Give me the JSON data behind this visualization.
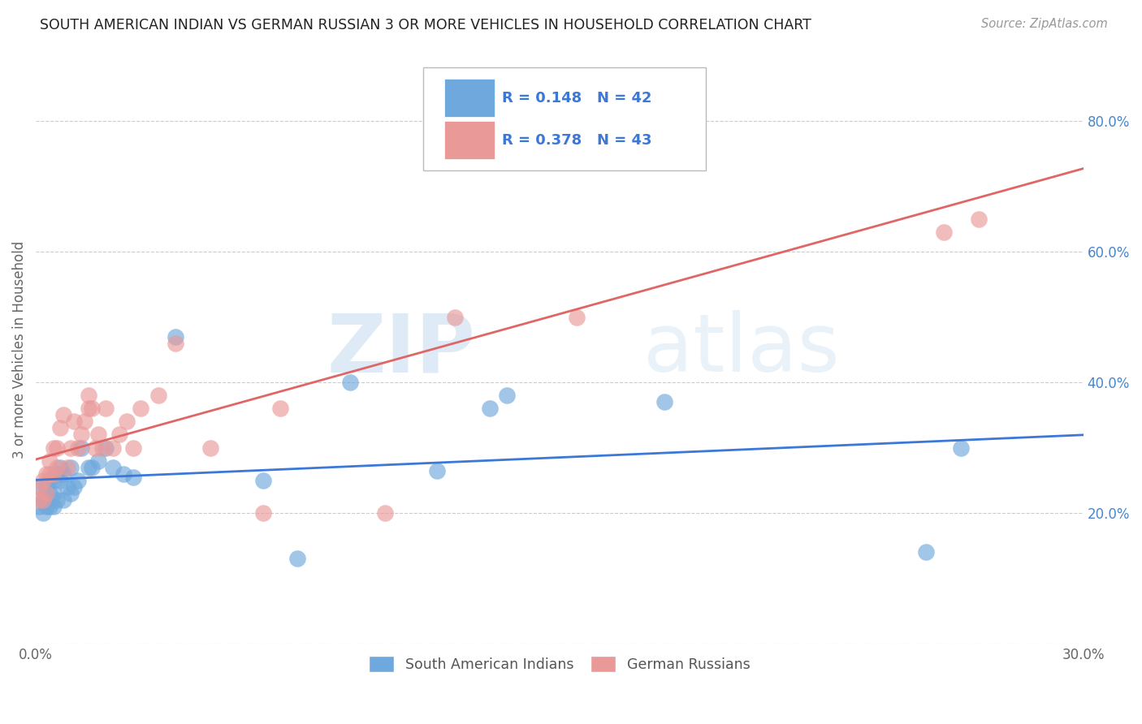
{
  "title": "SOUTH AMERICAN INDIAN VS GERMAN RUSSIAN 3 OR MORE VEHICLES IN HOUSEHOLD CORRELATION CHART",
  "source": "Source: ZipAtlas.com",
  "ylabel": "3 or more Vehicles in Household",
  "xlim": [
    0.0,
    0.3
  ],
  "ylim": [
    0.0,
    0.9
  ],
  "xticks": [
    0.0,
    0.05,
    0.1,
    0.15,
    0.2,
    0.25,
    0.3
  ],
  "xticklabels": [
    "0.0%",
    "",
    "",
    "",
    "",
    "",
    "30.0%"
  ],
  "yticks_right": [
    0.0,
    0.2,
    0.4,
    0.6,
    0.8
  ],
  "ytick_right_labels": [
    "",
    "20.0%",
    "40.0%",
    "60.0%",
    "80.0%"
  ],
  "blue_color": "#6fa8dc",
  "pink_color": "#ea9999",
  "blue_line_color": "#3c78d8",
  "pink_line_color": "#e06666",
  "legend_text_color": "#3c78d8",
  "r_blue": 0.148,
  "n_blue": 42,
  "r_pink": 0.378,
  "n_pink": 43,
  "watermark_zip": "ZIP",
  "watermark_atlas": "atlas",
  "blue_scatter_x": [
    0.001,
    0.001,
    0.002,
    0.002,
    0.003,
    0.003,
    0.003,
    0.004,
    0.004,
    0.004,
    0.005,
    0.005,
    0.005,
    0.006,
    0.006,
    0.007,
    0.007,
    0.008,
    0.008,
    0.009,
    0.01,
    0.01,
    0.011,
    0.012,
    0.013,
    0.015,
    0.016,
    0.018,
    0.02,
    0.022,
    0.025,
    0.028,
    0.04,
    0.09,
    0.115,
    0.13,
    0.135,
    0.18,
    0.065,
    0.075,
    0.255,
    0.265
  ],
  "blue_scatter_y": [
    0.24,
    0.21,
    0.22,
    0.2,
    0.24,
    0.22,
    0.21,
    0.25,
    0.23,
    0.21,
    0.23,
    0.25,
    0.21,
    0.22,
    0.26,
    0.27,
    0.25,
    0.26,
    0.22,
    0.24,
    0.27,
    0.23,
    0.24,
    0.25,
    0.3,
    0.27,
    0.27,
    0.28,
    0.3,
    0.27,
    0.26,
    0.255,
    0.47,
    0.4,
    0.265,
    0.36,
    0.38,
    0.37,
    0.25,
    0.13,
    0.14,
    0.3
  ],
  "pink_scatter_x": [
    0.001,
    0.001,
    0.002,
    0.002,
    0.003,
    0.003,
    0.004,
    0.004,
    0.005,
    0.005,
    0.006,
    0.006,
    0.007,
    0.008,
    0.009,
    0.01,
    0.011,
    0.012,
    0.013,
    0.014,
    0.015,
    0.015,
    0.016,
    0.017,
    0.018,
    0.019,
    0.02,
    0.022,
    0.024,
    0.026,
    0.028,
    0.03,
    0.035,
    0.04,
    0.05,
    0.065,
    0.07,
    0.1,
    0.12,
    0.14,
    0.155,
    0.26,
    0.27
  ],
  "pink_scatter_y": [
    0.24,
    0.22,
    0.25,
    0.22,
    0.26,
    0.23,
    0.28,
    0.26,
    0.3,
    0.26,
    0.3,
    0.27,
    0.33,
    0.35,
    0.27,
    0.3,
    0.34,
    0.3,
    0.32,
    0.34,
    0.38,
    0.36,
    0.36,
    0.3,
    0.32,
    0.3,
    0.36,
    0.3,
    0.32,
    0.34,
    0.3,
    0.36,
    0.38,
    0.46,
    0.3,
    0.2,
    0.36,
    0.2,
    0.5,
    0.8,
    0.5,
    0.63,
    0.65
  ]
}
